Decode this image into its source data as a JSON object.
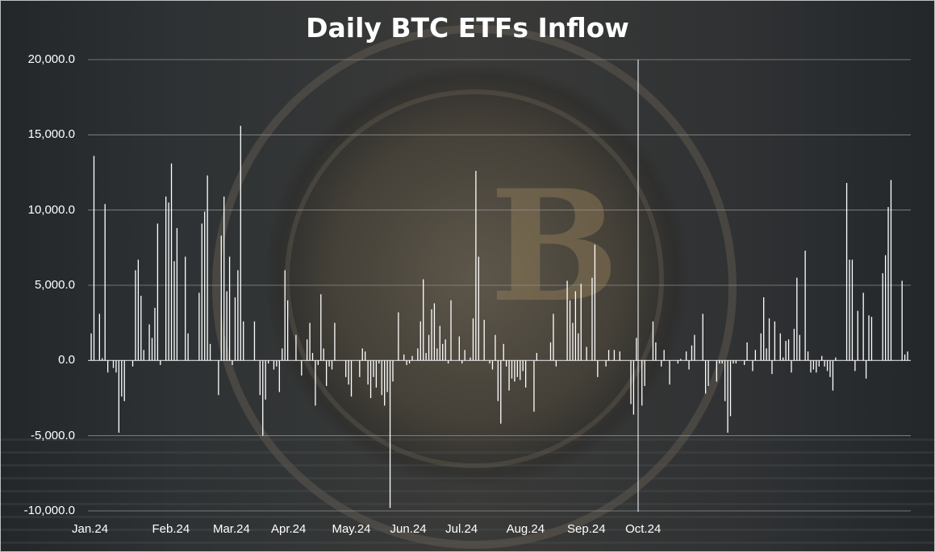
{
  "chart_data": {
    "type": "bar",
    "title": "Daily BTC ETFs Inflow",
    "ylim": [
      -10000,
      20000
    ],
    "y_ticks": [
      "20,000.0",
      "15,000.0",
      "10,000.0",
      "5,000.0",
      "0.0",
      "-5,000.0",
      "-10,000.0"
    ],
    "y_tick_values": [
      20000,
      15000,
      10000,
      5000,
      0,
      -5000,
      -10000
    ],
    "x_ticks": [
      "Jan.24",
      "Feb.24",
      "Mar.24",
      "Apr.24",
      "May.24",
      "Jun.24",
      "Jul.24",
      "Aug.24",
      "Sep.24",
      "Oct.24"
    ],
    "grid": "horizontal",
    "bar_color": "#ffffff",
    "values": [
      1800,
      13600,
      0,
      3100,
      150,
      10400,
      -800,
      0,
      -500,
      -800,
      -4800,
      -2400,
      -2700,
      0,
      0,
      -400,
      6000,
      6700,
      4300,
      700,
      0,
      2400,
      1500,
      3500,
      9100,
      -300,
      0,
      10900,
      10500,
      13100,
      6600,
      8800,
      0,
      0,
      6900,
      1800,
      0,
      0,
      0,
      4500,
      9100,
      9900,
      12300,
      1100,
      0,
      0,
      -2300,
      8300,
      10900,
      4600,
      6900,
      -300,
      4200,
      6000,
      15600,
      2600,
      0,
      0,
      0,
      2600,
      0,
      -2300,
      -5000,
      -2600,
      -200,
      0,
      -600,
      -400,
      -2100,
      800,
      6000,
      4000,
      0,
      0,
      1700,
      0,
      -1000,
      0,
      1400,
      2500,
      500,
      -3000,
      -300,
      4400,
      800,
      -1700,
      -400,
      -600,
      2500,
      0,
      0,
      0,
      -1100,
      -1600,
      -2400,
      0,
      0,
      -1100,
      800,
      600,
      -1600,
      -2500,
      -1100,
      -1800,
      -200,
      -2300,
      -3000,
      -2100,
      -9800,
      -1400,
      0,
      3200,
      0,
      400,
      -300,
      -200,
      300,
      0,
      800,
      2600,
      5400,
      500,
      1700,
      3400,
      3800,
      800,
      2300,
      1100,
      1400,
      -200,
      4000,
      0,
      0,
      1600,
      -200,
      700,
      0,
      200,
      2800,
      12600,
      6900,
      0,
      2700,
      0,
      -200,
      -600,
      1700,
      -2700,
      -4200,
      1100,
      -400,
      -2000,
      -1200,
      -1400,
      -1100,
      -1300,
      -700,
      -1800,
      0,
      0,
      -3400,
      500,
      0,
      0,
      0,
      0,
      1200,
      3100,
      -400,
      0,
      0,
      0,
      5300,
      4000,
      2500,
      4600,
      1800,
      5100,
      0,
      900,
      0,
      5500,
      7700,
      -1100,
      0,
      0,
      -400,
      700,
      0,
      700,
      0,
      600,
      0,
      0,
      0,
      -2900,
      -3600,
      1500,
      0,
      -3000,
      -1700,
      0,
      0,
      2600,
      1200,
      0,
      -400,
      700,
      0,
      -1600,
      0,
      0,
      -200,
      100,
      0,
      600,
      -600,
      1000,
      1700,
      0,
      0,
      3100,
      -2200,
      -1700,
      0,
      0,
      -1400,
      -200,
      -200,
      -2700,
      -4800,
      -3700,
      -200,
      -200,
      0,
      0,
      -300,
      1200,
      0,
      -700,
      700,
      0,
      1800,
      4200,
      800,
      2800,
      -900,
      2600,
      0,
      1800,
      200,
      1300,
      1400,
      -800,
      2100,
      5500,
      1700,
      0,
      7300,
      600,
      -800,
      -600,
      -800,
      -400,
      300,
      -400,
      -700,
      -1100,
      -2000,
      200,
      0,
      0,
      0,
      11800,
      6700,
      6700,
      -700,
      3300,
      0,
      4500,
      -1200,
      3000,
      2900,
      0,
      0,
      0,
      5800,
      7000,
      10200,
      12000,
      0,
      0,
      0,
      5300,
      400,
      600
    ],
    "x_tick_indices": [
      0,
      29,
      51,
      72,
      94,
      115,
      135,
      157,
      179,
      200
    ]
  }
}
